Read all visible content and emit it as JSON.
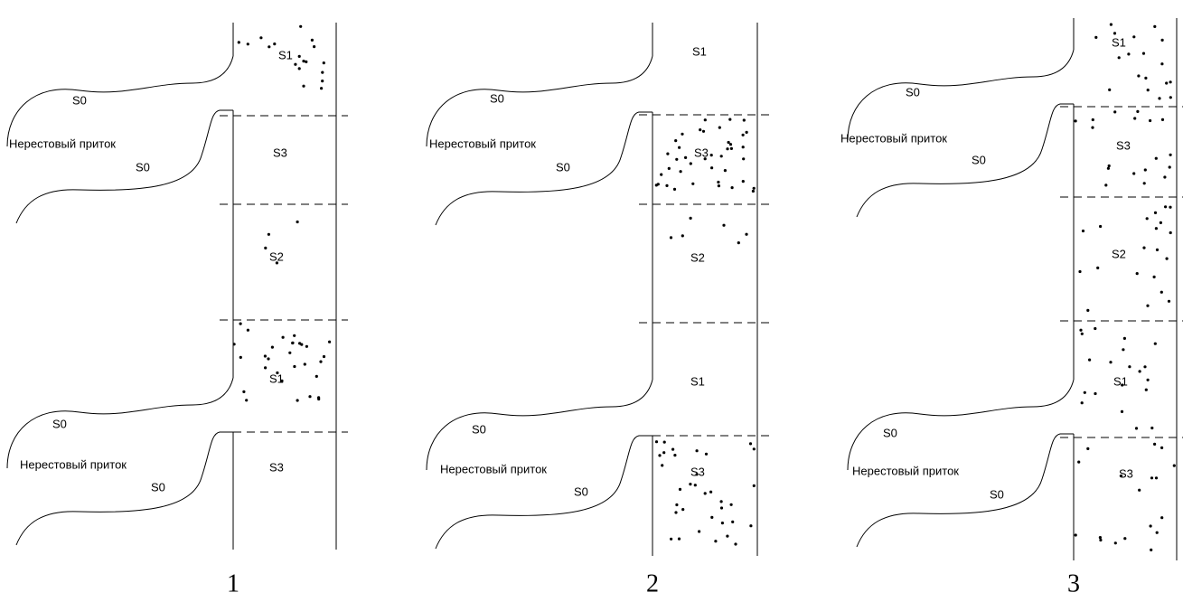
{
  "panels": [
    {
      "number": "1",
      "labels": [
        "S1",
        "S0",
        "Нерестовый приток",
        "S0",
        "S3",
        "S2",
        "S1",
        "S0",
        "Нерестовый приток",
        "S0",
        "S3"
      ]
    },
    {
      "number": "2",
      "labels": [
        "S1",
        "S0",
        "Нерестовый приток",
        "S0",
        "S3",
        "S2",
        "S1",
        "S0",
        "Нерестовый приток",
        "S0",
        "S3"
      ]
    },
    {
      "number": "3",
      "labels": [
        "S1",
        "S0",
        "Нерестовый приток",
        "S0",
        "S3",
        "S2",
        "S1",
        "S0",
        "Нерестовый приток",
        "S0",
        "S3"
      ]
    }
  ]
}
